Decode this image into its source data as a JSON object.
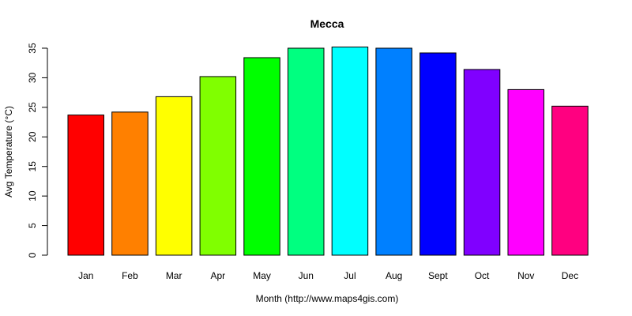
{
  "chart_data": {
    "type": "bar",
    "title": "Mecca",
    "xlabel": "Month (http://www.maps4gis.com)",
    "ylabel": "Avg Temperature (°C)",
    "ylim": [
      0,
      35
    ],
    "yticks": [
      0,
      5,
      10,
      15,
      20,
      25,
      30,
      35
    ],
    "categories": [
      "Jan",
      "Feb",
      "Mar",
      "Apr",
      "May",
      "Jun",
      "Jul",
      "Aug",
      "Sept",
      "Oct",
      "Nov",
      "Dec"
    ],
    "values": [
      23.7,
      24.2,
      26.8,
      30.2,
      33.4,
      35.0,
      35.2,
      35.0,
      34.2,
      31.4,
      28.0,
      25.2
    ],
    "colors": [
      "#FF0000",
      "#FF8000",
      "#FFFF00",
      "#80FF00",
      "#00FF00",
      "#00FF80",
      "#00FFFF",
      "#0080FF",
      "#0000FF",
      "#8000FF",
      "#FF00FF",
      "#FF0080"
    ],
    "grid": false,
    "legend": "none"
  }
}
